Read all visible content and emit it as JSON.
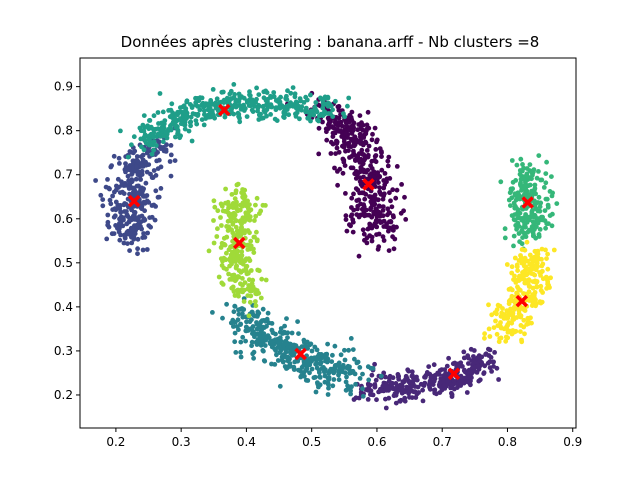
{
  "chart_data": {
    "type": "scatter",
    "title": "Données après clustering : banana.arff - Nb clusters =8",
    "xlabel": "",
    "ylabel": "",
    "xlim": [
      0.145,
      0.905
    ],
    "ylim": [
      0.125,
      0.965
    ],
    "grid": false,
    "xticks": [
      0.2,
      0.3,
      0.4,
      0.5,
      0.6,
      0.7,
      0.8,
      0.9
    ],
    "xtick_labels": [
      "0.2",
      "0.3",
      "0.4",
      "0.5",
      "0.6",
      "0.7",
      "0.8",
      "0.9"
    ],
    "yticks": [
      0.2,
      0.3,
      0.4,
      0.5,
      0.6,
      0.7,
      0.8,
      0.9
    ],
    "ytick_labels": [
      "0.2",
      "0.3",
      "0.4",
      "0.5",
      "0.6",
      "0.7",
      "0.8",
      "0.9"
    ],
    "clusters": [
      {
        "color": "#440154",
        "centroid": [
          0.587,
          0.678
        ],
        "spine": [
          [
            0.51,
            0.85
          ],
          [
            0.56,
            0.8
          ],
          [
            0.585,
            0.72
          ],
          [
            0.595,
            0.64
          ],
          [
            0.6,
            0.56
          ]
        ],
        "halfwidth": 0.025,
        "n": 420
      },
      {
        "color": "#482878",
        "centroid": [
          0.718,
          0.248
        ],
        "spine": [
          [
            0.59,
            0.22
          ],
          [
            0.66,
            0.22
          ],
          [
            0.72,
            0.24
          ],
          [
            0.77,
            0.28
          ]
        ],
        "halfwidth": 0.022,
        "n": 330
      },
      {
        "color": "#3e4989",
        "centroid": [
          0.228,
          0.64
        ],
        "spine": [
          [
            0.26,
            0.77
          ],
          [
            0.23,
            0.7
          ],
          [
            0.22,
            0.63
          ],
          [
            0.225,
            0.55
          ]
        ],
        "halfwidth": 0.025,
        "n": 330
      },
      {
        "color": "#26828e",
        "centroid": [
          0.483,
          0.293
        ],
        "spine": [
          [
            0.39,
            0.38
          ],
          [
            0.44,
            0.32
          ],
          [
            0.5,
            0.27
          ],
          [
            0.57,
            0.24
          ]
        ],
        "halfwidth": 0.028,
        "n": 380
      },
      {
        "color": "#1f9e89",
        "centroid": [
          0.366,
          0.847
        ],
        "spine": [
          [
            0.24,
            0.77
          ],
          [
            0.29,
            0.83
          ],
          [
            0.36,
            0.865
          ],
          [
            0.44,
            0.86
          ],
          [
            0.53,
            0.85
          ]
        ],
        "halfwidth": 0.022,
        "n": 430
      },
      {
        "color": "#35b779",
        "centroid": [
          0.831,
          0.637
        ],
        "spine": [
          [
            0.83,
            0.72
          ],
          [
            0.832,
            0.64
          ],
          [
            0.835,
            0.56
          ]
        ],
        "halfwidth": 0.02,
        "n": 230
      },
      {
        "color": "#a0da39",
        "centroid": [
          0.389,
          0.545
        ],
        "spine": [
          [
            0.39,
            0.66
          ],
          [
            0.385,
            0.58
          ],
          [
            0.385,
            0.5
          ],
          [
            0.4,
            0.42
          ]
        ],
        "halfwidth": 0.022,
        "n": 280
      },
      {
        "color": "#fde725",
        "centroid": [
          0.822,
          0.413
        ],
        "spine": [
          [
            0.84,
            0.52
          ],
          [
            0.83,
            0.43
          ],
          [
            0.8,
            0.36
          ],
          [
            0.79,
            0.33
          ]
        ],
        "halfwidth": 0.02,
        "n": 260
      }
    ],
    "centroid_marker": {
      "shape": "X",
      "color": "#ff0000"
    }
  }
}
